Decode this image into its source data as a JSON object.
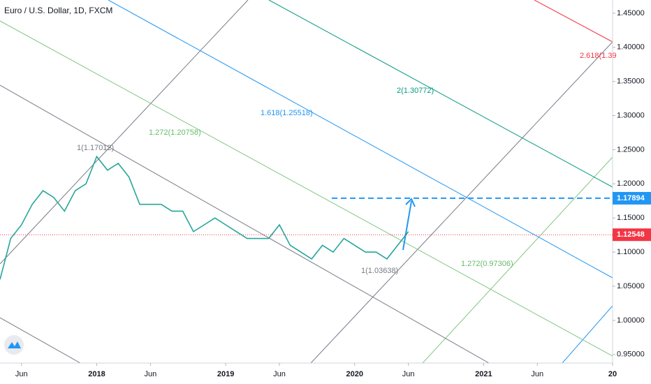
{
  "chart_data": {
    "type": "line",
    "title": "Euro / U.S. Dollar, 1D, FXCM",
    "x": [
      "2017-04",
      "2017-05",
      "2017-06",
      "2017-07",
      "2017-08",
      "2017-09",
      "2017-10",
      "2017-11",
      "2017-12",
      "2018-01",
      "2018-02",
      "2018-03",
      "2018-04",
      "2018-05",
      "2018-06",
      "2018-07",
      "2018-08",
      "2018-09",
      "2018-10",
      "2018-11",
      "2018-12",
      "2019-01",
      "2019-02",
      "2019-03",
      "2019-04",
      "2019-05",
      "2019-06",
      "2019-07",
      "2019-08",
      "2019-09",
      "2019-10",
      "2019-11",
      "2019-12",
      "2020-01",
      "2020-02",
      "2020-03",
      "2020-04",
      "2020-05",
      "2020-06"
    ],
    "series": [
      {
        "color": "#26a69a",
        "values": [
          1.06,
          1.12,
          1.14,
          1.17,
          1.19,
          1.18,
          1.16,
          1.19,
          1.2,
          1.24,
          1.22,
          1.23,
          1.21,
          1.17,
          1.17,
          1.17,
          1.16,
          1.16,
          1.13,
          1.14,
          1.15,
          1.14,
          1.13,
          1.12,
          1.12,
          1.12,
          1.14,
          1.11,
          1.1,
          1.09,
          1.11,
          1.1,
          1.12,
          1.11,
          1.1,
          1.1,
          1.09,
          1.11,
          1.13
        ]
      }
    ],
    "ylim": [
      0.9375,
      1.4693
    ],
    "yticks": [
      {
        "value": 1.45,
        "label": "1.45000"
      },
      {
        "value": 1.4,
        "label": "1.40000"
      },
      {
        "value": 1.35,
        "label": "1.35000"
      },
      {
        "value": 1.3,
        "label": "1.30000"
      },
      {
        "value": 1.25,
        "label": "1.25000"
      },
      {
        "value": 1.2,
        "label": "1.20000"
      },
      {
        "value": 1.15,
        "label": "1.15000"
      },
      {
        "value": 1.1,
        "label": "1.10000"
      },
      {
        "value": 1.05,
        "label": "1.05000"
      },
      {
        "value": 1,
        "label": "1.00000"
      },
      {
        "value": 0.95,
        "label": "0.95000"
      }
    ],
    "xlim": [
      "2017-04",
      "2022-01"
    ],
    "xticks": [
      {
        "value": "2017-06",
        "label": "Jun"
      },
      {
        "value": "2018-01",
        "label": "2018"
      },
      {
        "value": "2018-06",
        "label": "Jun"
      },
      {
        "value": "2019-01",
        "label": "2019"
      },
      {
        "value": "2019-06",
        "label": "Jun"
      },
      {
        "value": "2020-01",
        "label": "2020"
      },
      {
        "value": "2020-06",
        "label": "Jun"
      },
      {
        "value": "2021-01",
        "label": "2021"
      },
      {
        "value": "2021-06",
        "label": "Jun"
      },
      {
        "value": "2022-01",
        "label": "20"
      }
    ],
    "price_lines": [
      {
        "value": 1.17894,
        "color": "#2196f3",
        "style": "dashed"
      },
      {
        "value": 1.12548,
        "color": "#f23645",
        "style": "dotted"
      }
    ],
    "annotations": [
      "2.618(1.39",
      "2(1.30772)",
      "1.618(1.25518)",
      "1.272(1.20758)",
      "1(1.17012)",
      "1(1.03638)",
      "1.272(0.97306)"
    ]
  }
}
